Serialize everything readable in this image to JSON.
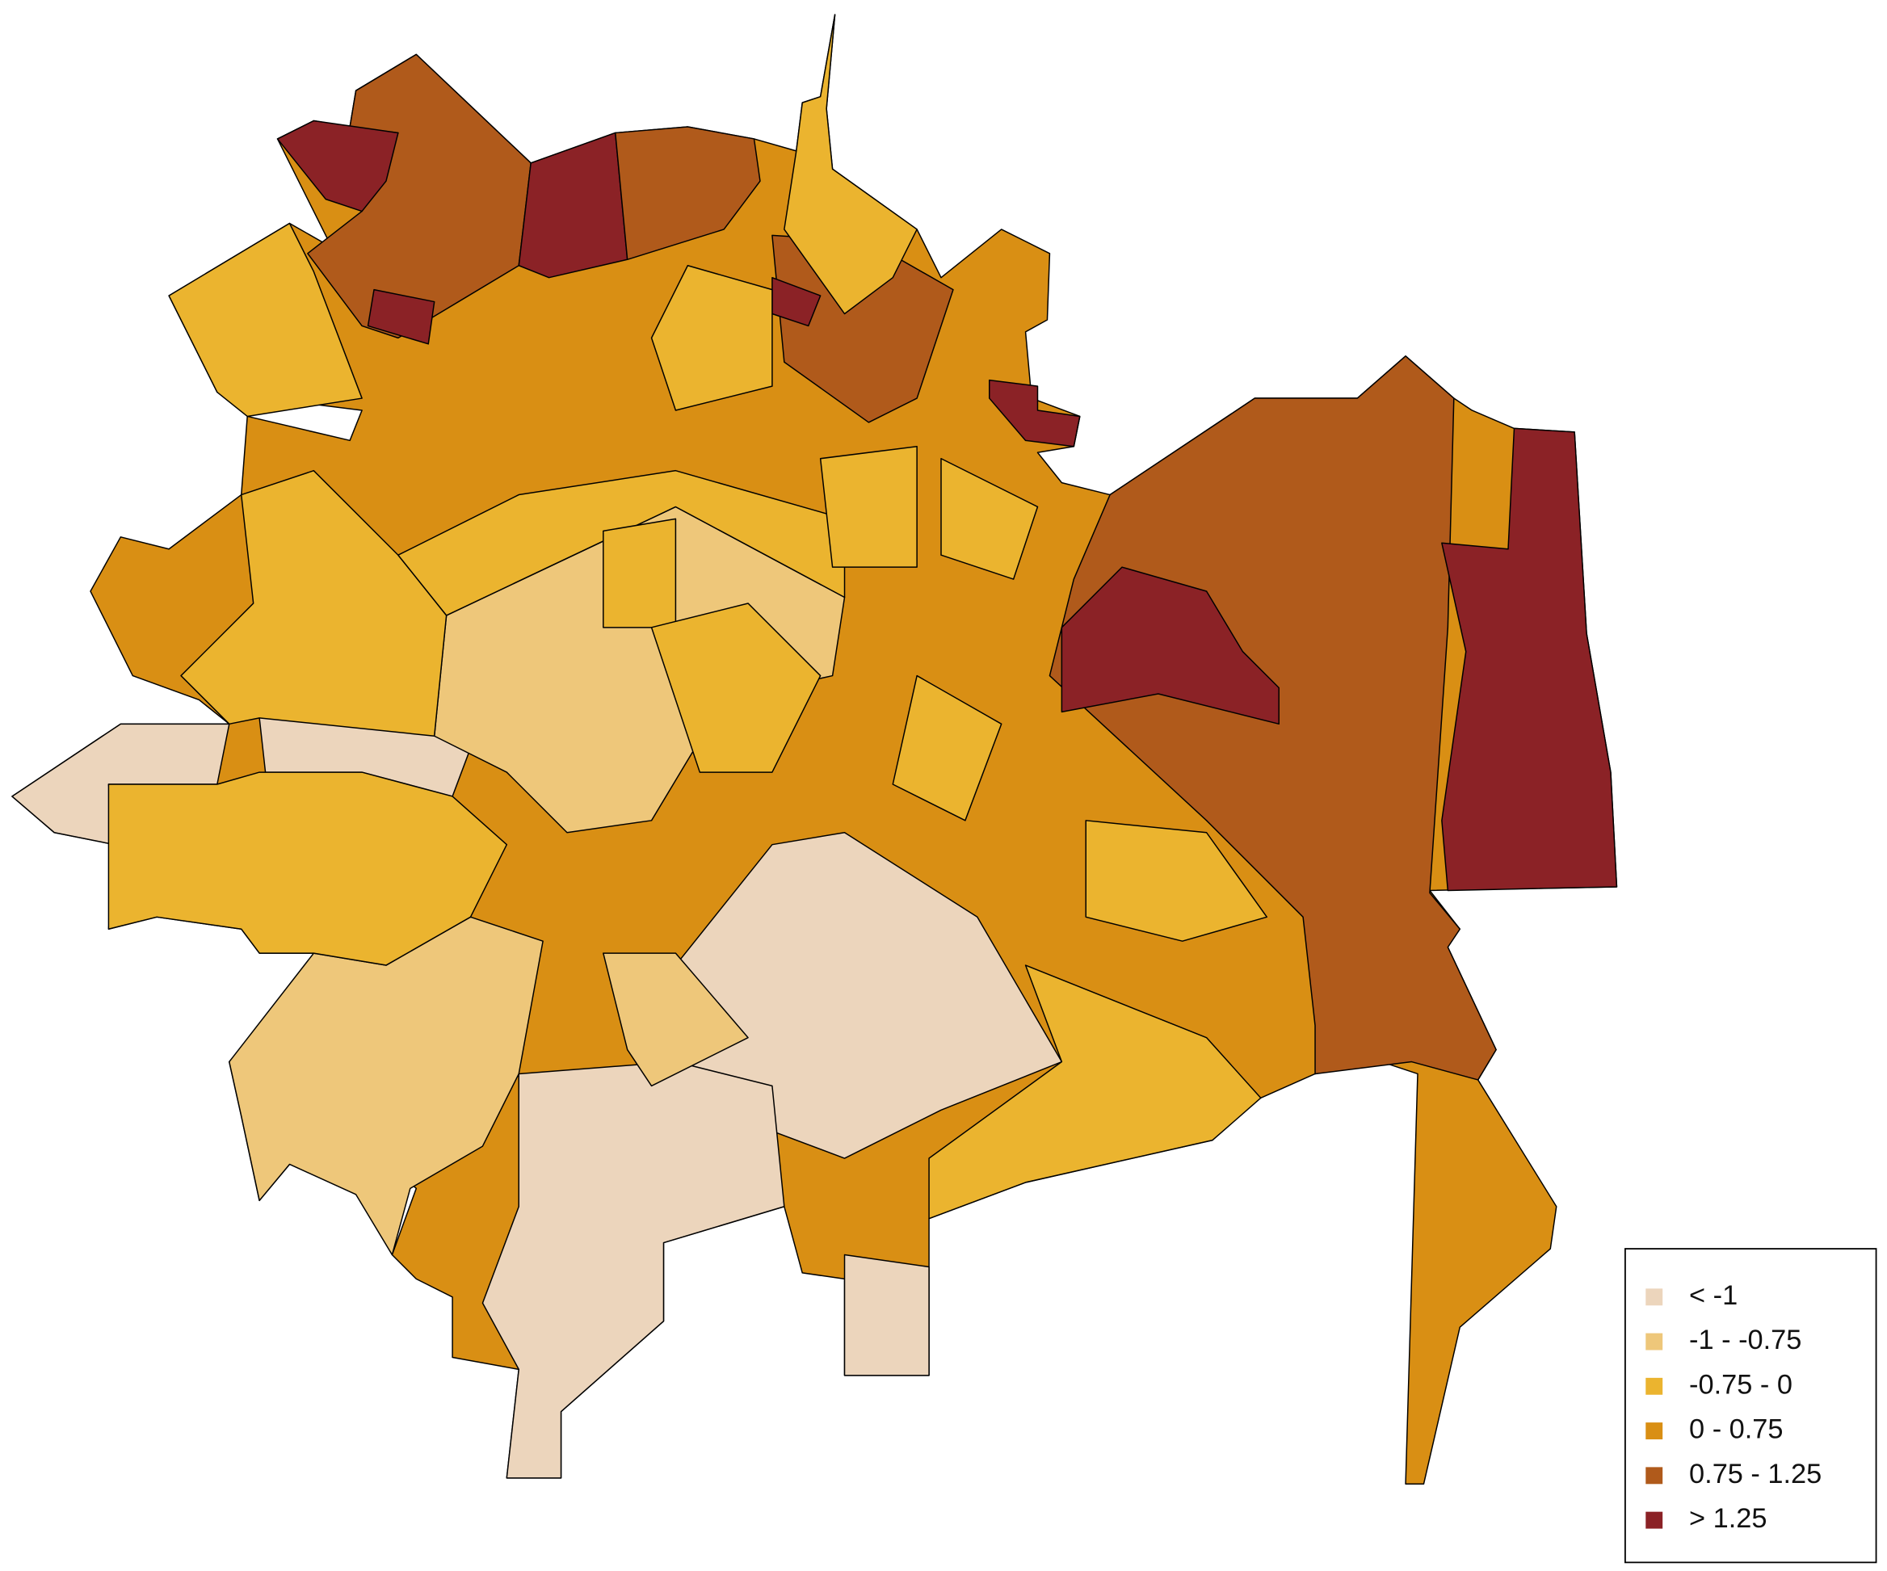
{
  "map": {
    "legend": {
      "items": [
        {
          "label": "< -1",
          "color": "#ecd5bc"
        },
        {
          "label": "-1 - -0.75",
          "color": "#eec77a"
        },
        {
          "label": "-0.75 - 0",
          "color": "#ebb42f"
        },
        {
          "label": "0 - 0.75",
          "color": "#d98f14"
        },
        {
          "label": "0.75 - 1.25",
          "color": "#b05a1b"
        },
        {
          "label": "> 1.25",
          "color": "#8b2226"
        }
      ]
    }
  }
}
